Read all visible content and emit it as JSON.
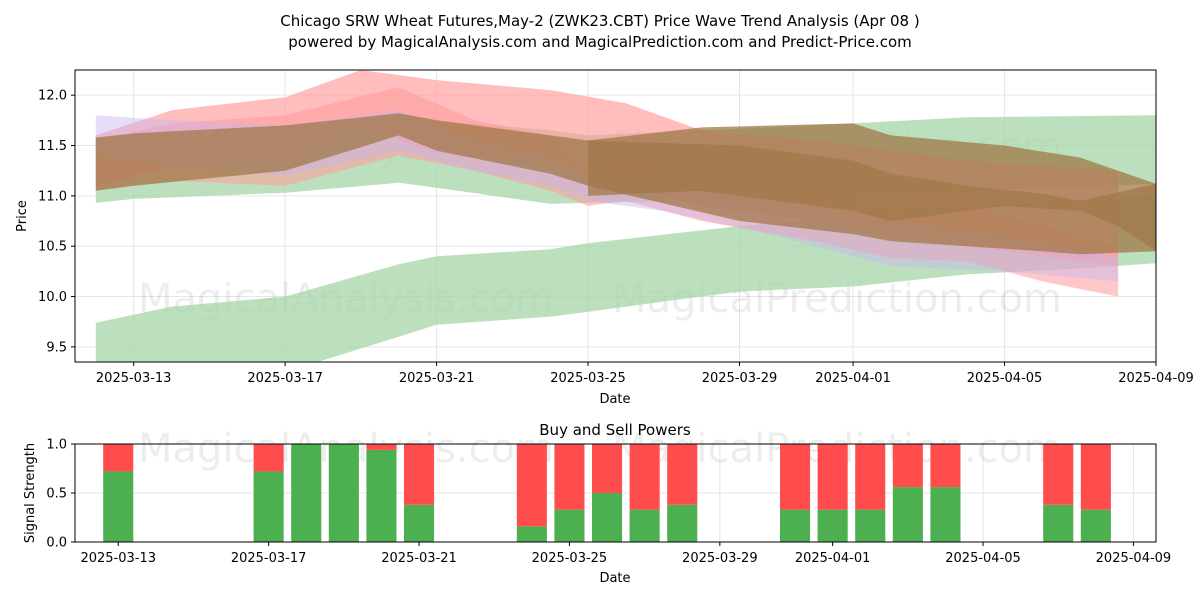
{
  "title_line1": "Chicago SRW Wheat Futures,May-2 (ZWK23.CBT) Price Wave Trend Analysis (Apr 08 )",
  "title_line2": "powered by MagicalAnalysis.com and MagicalPrediction.com and Predict-Price.com",
  "watermarks": [
    "MagicalAnalysis.com",
    "MagicalPrediction.com"
  ],
  "colors": {
    "buy": "#4caf50",
    "sell": "#ff4d4d",
    "green_band": "#a5d6a7",
    "red_band": "#ff9a9a",
    "brown_band": "#a0784a",
    "purple_band": "#c8b4f0"
  },
  "chart_data": [
    {
      "type": "area",
      "title": "",
      "xlabel": "Date",
      "ylabel": "Price",
      "ylim": [
        9.35,
        12.25
      ],
      "xlim": [
        "2025-03-12",
        "2025-04-09"
      ],
      "yticks": [
        9.5,
        10.0,
        10.5,
        11.0,
        11.5,
        12.0
      ],
      "xticks": [
        "2025-03-13",
        "2025-03-17",
        "2025-03-21",
        "2025-03-25",
        "2025-03-29",
        "2025-04-01",
        "2025-04-05",
        "2025-04-09"
      ],
      "grid": true,
      "series": [
        {
          "color": "green",
          "opacity": 0.75,
          "x": [
            "2025-03-12",
            "2025-03-13",
            "2025-03-17",
            "2025-03-20",
            "2025-03-21",
            "2025-03-24",
            "2025-03-25",
            "2025-04-01",
            "2025-04-04",
            "2025-04-09"
          ],
          "upper": [
            11.58,
            11.58,
            11.62,
            11.8,
            11.75,
            11.65,
            11.6,
            11.72,
            11.78,
            11.8
          ],
          "lower": [
            10.93,
            10.97,
            11.03,
            11.13,
            11.08,
            10.92,
            10.93,
            10.98,
            11.05,
            11.12
          ]
        },
        {
          "color": "green",
          "opacity": 0.75,
          "x": [
            "2025-03-12",
            "2025-03-14",
            "2025-03-17",
            "2025-03-20",
            "2025-03-21",
            "2025-03-24",
            "2025-03-25",
            "2025-03-29",
            "2025-04-01",
            "2025-04-04",
            "2025-04-07",
            "2025-04-09"
          ],
          "upper": [
            9.74,
            9.9,
            10.0,
            10.32,
            10.4,
            10.47,
            10.53,
            10.7,
            10.8,
            10.9,
            10.95,
            11.0
          ],
          "lower": [
            9.3,
            9.2,
            9.25,
            9.6,
            9.72,
            9.8,
            9.85,
            10.05,
            10.1,
            10.22,
            10.28,
            10.33
          ]
        },
        {
          "color": "red",
          "opacity": 0.65,
          "x": [
            "2025-03-12",
            "2025-03-14",
            "2025-03-17",
            "2025-03-19",
            "2025-03-21",
            "2025-03-24",
            "2025-03-26",
            "2025-03-28",
            "2025-03-31",
            "2025-04-02",
            "2025-04-04",
            "2025-04-06",
            "2025-04-08"
          ],
          "upper": [
            11.6,
            11.85,
            11.98,
            12.25,
            12.15,
            12.05,
            11.92,
            11.65,
            11.55,
            11.45,
            11.35,
            11.3,
            11.25
          ],
          "lower": [
            11.1,
            11.3,
            11.35,
            11.7,
            11.42,
            11.3,
            11.1,
            10.9,
            10.75,
            10.6,
            10.5,
            10.4,
            10.3
          ]
        },
        {
          "color": "red",
          "opacity": 0.55,
          "x": [
            "2025-03-12",
            "2025-03-14",
            "2025-03-17",
            "2025-03-20",
            "2025-03-22",
            "2025-03-24",
            "2025-03-25",
            "2025-03-26",
            "2025-03-28",
            "2025-03-31",
            "2025-04-02",
            "2025-04-04",
            "2025-04-06",
            "2025-04-08"
          ],
          "upper": [
            11.55,
            11.72,
            11.8,
            12.08,
            11.75,
            11.6,
            11.25,
            11.42,
            11.2,
            11.05,
            10.85,
            10.9,
            10.7,
            10.5
          ],
          "lower": [
            11.05,
            11.15,
            11.1,
            11.4,
            11.25,
            11.05,
            10.9,
            10.95,
            10.75,
            10.55,
            10.38,
            10.35,
            10.15,
            10.0
          ]
        },
        {
          "color": "purple",
          "opacity": 0.45,
          "x": [
            "2025-03-12",
            "2025-03-14",
            "2025-03-17",
            "2025-03-20",
            "2025-03-22",
            "2025-03-24",
            "2025-03-25",
            "2025-03-27",
            "2025-03-30",
            "2025-04-02",
            "2025-04-05",
            "2025-04-08"
          ],
          "upper": [
            11.8,
            11.75,
            11.7,
            11.85,
            11.55,
            11.4,
            11.2,
            11.15,
            10.95,
            10.75,
            10.6,
            10.4
          ],
          "lower": [
            11.4,
            11.3,
            11.2,
            11.45,
            11.25,
            11.1,
            10.95,
            10.85,
            10.6,
            10.3,
            10.25,
            10.15
          ]
        },
        {
          "color": "brown",
          "opacity": 0.75,
          "x": [
            "2025-03-12",
            "2025-03-13",
            "2025-03-17",
            "2025-03-20",
            "2025-03-21",
            "2025-03-24",
            "2025-03-25",
            "2025-03-29",
            "2025-04-01",
            "2025-04-02",
            "2025-04-04",
            "2025-04-06",
            "2025-04-07",
            "2025-04-09"
          ],
          "upper": [
            11.58,
            11.62,
            11.7,
            11.82,
            11.75,
            11.6,
            11.55,
            11.5,
            11.35,
            11.22,
            11.1,
            11.02,
            10.95,
            11.12
          ],
          "lower": [
            11.05,
            11.1,
            11.25,
            11.6,
            11.45,
            11.22,
            11.1,
            10.75,
            10.62,
            10.55,
            10.5,
            10.45,
            10.42,
            10.45
          ]
        },
        {
          "color": "brown",
          "opacity": 0.75,
          "x": [
            "2025-03-25",
            "2025-03-28",
            "2025-04-01",
            "2025-04-02",
            "2025-04-05",
            "2025-04-07",
            "2025-04-08",
            "2025-04-09"
          ],
          "upper": [
            11.55,
            11.68,
            11.72,
            11.6,
            11.5,
            11.38,
            11.25,
            11.12
          ],
          "lower": [
            11.0,
            11.05,
            10.85,
            10.75,
            10.9,
            10.85,
            10.7,
            10.45
          ]
        }
      ]
    },
    {
      "type": "bar",
      "title": "Buy and Sell Powers",
      "xlabel": "Date",
      "ylabel": "Signal Strength",
      "ylim": [
        0,
        1
      ],
      "yticks": [
        0.0,
        0.5,
        1.0
      ],
      "xticks": [
        "2025-03-13",
        "2025-03-17",
        "2025-03-21",
        "2025-03-25",
        "2025-03-29",
        "2025-04-01",
        "2025-04-05",
        "2025-04-09"
      ],
      "grid": true,
      "categories": [
        "2025-03-13",
        "2025-03-17",
        "2025-03-18",
        "2025-03-19",
        "2025-03-20",
        "2025-03-21",
        "2025-03-24",
        "2025-03-25",
        "2025-03-26",
        "2025-03-27",
        "2025-03-28",
        "2025-03-31",
        "2025-04-01",
        "2025-04-02",
        "2025-04-03",
        "2025-04-04",
        "2025-04-07",
        "2025-04-08"
      ],
      "series": [
        {
          "name": "Buy",
          "values": [
            0.72,
            0.72,
            1.0,
            1.0,
            0.94,
            0.38,
            0.16,
            0.33,
            0.5,
            0.33,
            0.38,
            0.33,
            0.33,
            0.33,
            0.56,
            0.56,
            0.38,
            0.33
          ]
        },
        {
          "name": "Sell",
          "values": [
            0.28,
            0.28,
            0.0,
            0.0,
            0.06,
            0.62,
            0.84,
            0.67,
            0.5,
            0.67,
            0.62,
            0.67,
            0.67,
            0.67,
            0.44,
            0.44,
            0.62,
            0.67
          ]
        }
      ]
    }
  ]
}
